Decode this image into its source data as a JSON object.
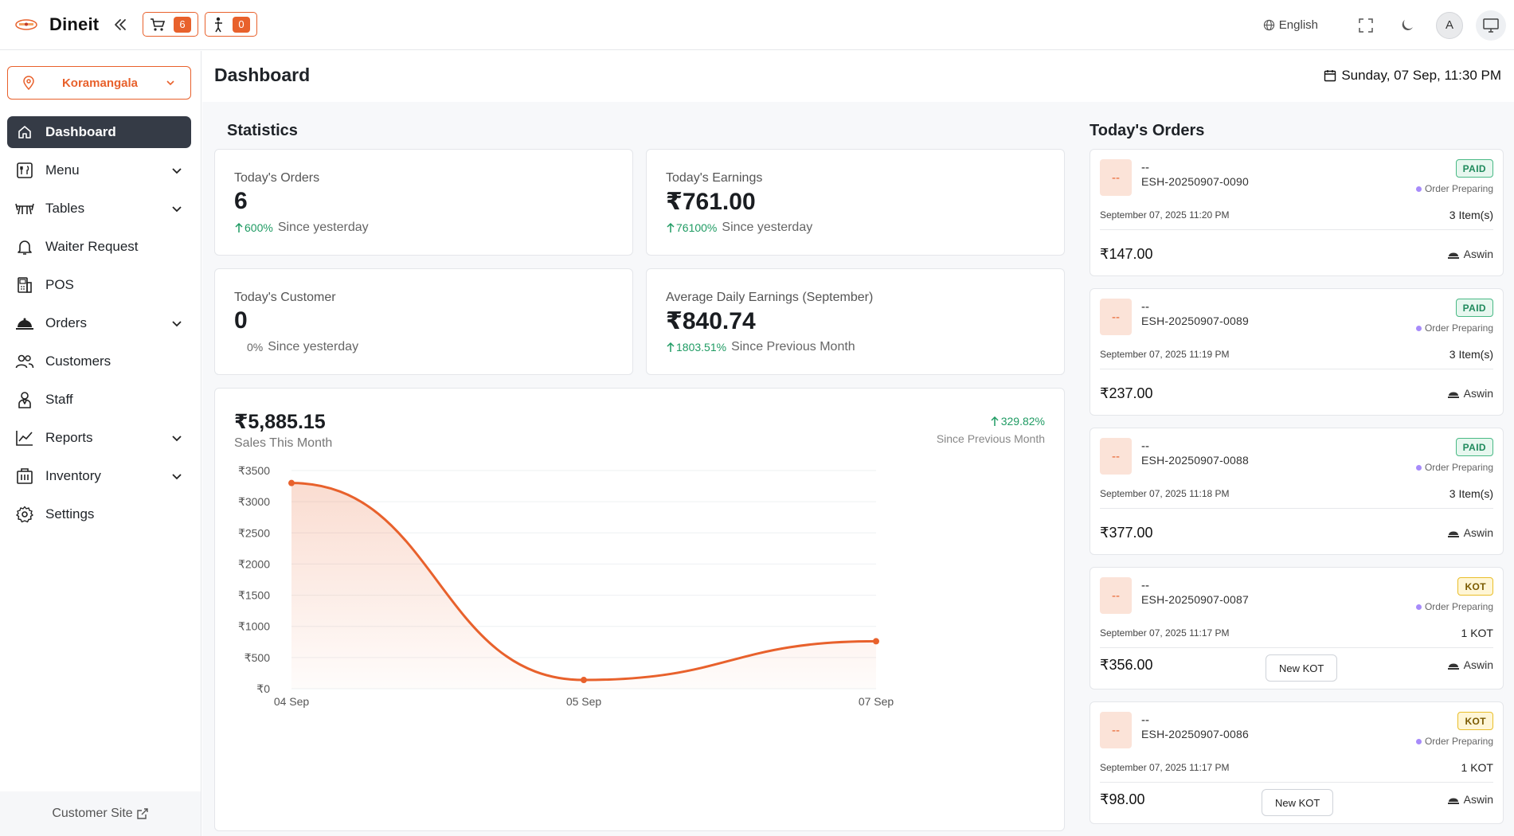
{
  "app": {
    "name": "Dineit"
  },
  "topbar": {
    "cart_count": "6",
    "waiter_count": "0",
    "language": "English",
    "avatar_initial": "A"
  },
  "sidebar": {
    "location": "Koramangala",
    "items": [
      {
        "label": "Dashboard"
      },
      {
        "label": "Menu"
      },
      {
        "label": "Tables"
      },
      {
        "label": "Waiter Request"
      },
      {
        "label": "POS"
      },
      {
        "label": "Orders"
      },
      {
        "label": "Customers"
      },
      {
        "label": "Staff"
      },
      {
        "label": "Reports"
      },
      {
        "label": "Inventory"
      },
      {
        "label": "Settings"
      }
    ],
    "customer_site": "Customer Site"
  },
  "header": {
    "title": "Dashboard",
    "datetime": "Sunday, 07 Sep, 11:30 PM"
  },
  "statistics": {
    "title": "Statistics",
    "cards": [
      {
        "label": "Today's Orders",
        "value": "6",
        "pct": "600%",
        "since": "Since yesterday"
      },
      {
        "label": "Today's Earnings",
        "value": "₹761.00",
        "pct": "76100%",
        "since": "Since yesterday"
      },
      {
        "label": "Today's Customer",
        "value": "0",
        "pct": "0%",
        "since": "Since yesterday"
      },
      {
        "label": "Average Daily Earnings (September)",
        "value": "₹840.74",
        "pct": "1803.51%",
        "since": "Since Previous Month"
      }
    ]
  },
  "sales": {
    "value": "₹5,885.15",
    "label": "Sales This Month",
    "pct": "329.82%",
    "pct_label": "Since Previous Month"
  },
  "chart_data": {
    "type": "area",
    "x": [
      "04 Sep",
      "05 Sep",
      "07 Sep"
    ],
    "values": [
      3300,
      140,
      761
    ],
    "ylim": [
      0,
      3500
    ],
    "yticks": [
      0,
      500,
      1000,
      1500,
      2000,
      2500,
      3000,
      3500
    ],
    "ytick_labels": [
      "₹0",
      "₹500",
      "₹1000",
      "₹1500",
      "₹2000",
      "₹2500",
      "₹3000",
      "₹3500"
    ],
    "grid": true,
    "color": "#e8612c"
  },
  "orders": {
    "title": "Today's Orders",
    "new_kot_label": "New KOT",
    "items": [
      {
        "name": "--",
        "id": "ESH-20250907-0090",
        "badge": "PAID",
        "status": "Order Preparing",
        "date": "September 07, 2025 11:20 PM",
        "items": "3 Item(s)",
        "amount": "₹147.00",
        "waiter": "Aswin"
      },
      {
        "name": "--",
        "id": "ESH-20250907-0089",
        "badge": "PAID",
        "status": "Order Preparing",
        "date": "September 07, 2025 11:19 PM",
        "items": "3 Item(s)",
        "amount": "₹237.00",
        "waiter": "Aswin"
      },
      {
        "name": "--",
        "id": "ESH-20250907-0088",
        "badge": "PAID",
        "status": "Order Preparing",
        "date": "September 07, 2025 11:18 PM",
        "items": "3 Item(s)",
        "amount": "₹377.00",
        "waiter": "Aswin"
      },
      {
        "name": "--",
        "id": "ESH-20250907-0087",
        "badge": "KOT",
        "status": "Order Preparing",
        "date": "September 07, 2025 11:17 PM",
        "items": "1 KOT",
        "amount": "₹356.00",
        "waiter": "Aswin"
      },
      {
        "name": "--",
        "id": "ESH-20250907-0086",
        "badge": "KOT",
        "status": "Order Preparing",
        "date": "September 07, 2025 11:17 PM",
        "items": "1 KOT",
        "amount": "₹98.00",
        "waiter": "Aswin"
      }
    ]
  }
}
